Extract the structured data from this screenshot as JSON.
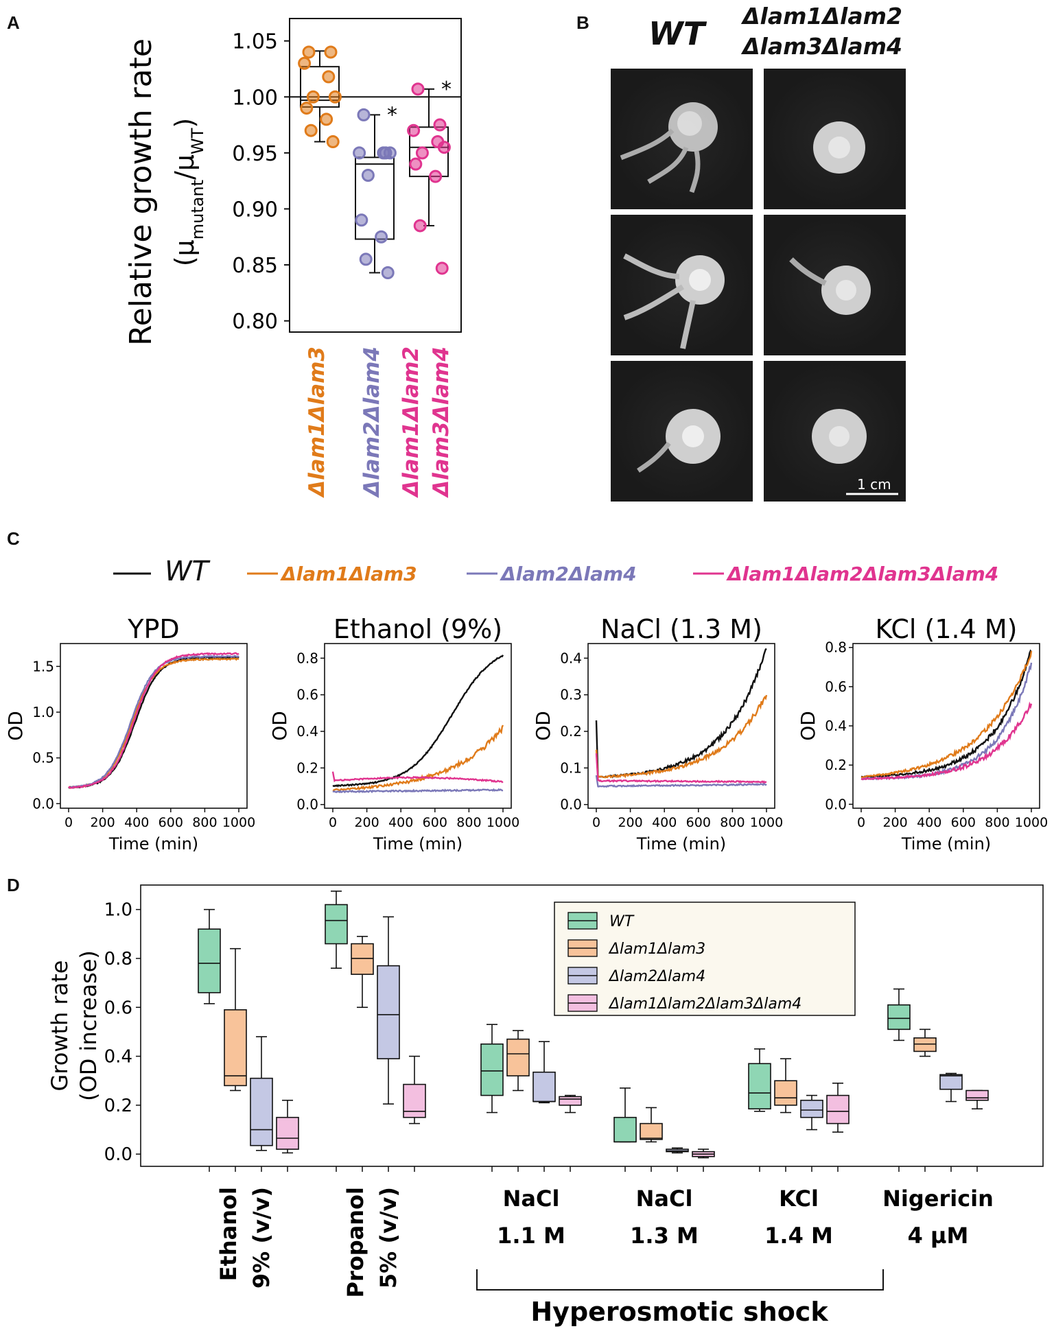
{
  "panels": {
    "a": "A",
    "b": "B",
    "c": "C",
    "d": "D"
  },
  "colors": {
    "wt": "#111111",
    "lam13": "#e07b1a",
    "lam24": "#7b78b8",
    "quad": "#e0348f",
    "box_wt": "#8fd6b4",
    "box_lam13": "#f8c39a",
    "box_lam24": "#c4c8e4",
    "box_quad": "#f3bfe0"
  },
  "panelA": {
    "ylabel_main": "Relative growth rate",
    "ylabel_paren_open": "(μ",
    "ylabel_sub1": "mutant",
    "ylabel_slash": "/μ",
    "ylabel_sub2": "WT",
    "ylabel_paren_close": ")",
    "ticks": [
      "1.05",
      "1.00",
      "0.95",
      "0.90",
      "0.85",
      "0.80"
    ],
    "tick_values": [
      1.05,
      1.0,
      0.95,
      0.9,
      0.85,
      0.8
    ],
    "ylim": [
      0.79,
      1.07
    ],
    "reference_line": 1.0,
    "star": "*",
    "groups": [
      {
        "label_line1": "Δlam1Δlam3",
        "label_line2": "",
        "color_key": "lam13",
        "box": {
          "q1": 0.991,
          "median": 0.997,
          "q3": 1.027,
          "lo": 0.96,
          "hi": 1.041
        },
        "points": [
          1.04,
          1.04,
          1.03,
          1.018,
          1.0,
          1.0,
          0.99,
          0.98,
          0.97,
          0.96
        ],
        "star": false
      },
      {
        "label_line1": "Δlam2Δlam4",
        "label_line2": "",
        "color_key": "lam24",
        "box": {
          "q1": 0.873,
          "median": 0.94,
          "q3": 0.946,
          "lo": 0.843,
          "hi": 0.984
        },
        "points": [
          0.984,
          0.95,
          0.95,
          0.95,
          0.95,
          0.93,
          0.89,
          0.875,
          0.855,
          0.843
        ],
        "star": true
      },
      {
        "label_line1": "Δlam1Δlam2",
        "label_line2": "Δlam3Δlam4",
        "color_key": "quad",
        "box": {
          "q1": 0.929,
          "median": 0.955,
          "q3": 0.973,
          "lo": 0.885,
          "hi": 1.007
        },
        "points": [
          1.007,
          0.975,
          0.97,
          0.96,
          0.955,
          0.95,
          0.94,
          0.929,
          0.885,
          0.847
        ],
        "star": true
      }
    ]
  },
  "panelB": {
    "col1": "WT",
    "col2_line1": "Δlam1Δlam2",
    "col2_line2": "Δlam3Δlam4",
    "scale_bar": "1 cm"
  },
  "panelC": {
    "legend": [
      {
        "label": "WT",
        "color_key": "wt",
        "italic_bold": false
      },
      {
        "label": "Δlam1Δlam3",
        "color_key": "lam13",
        "italic_bold": true
      },
      {
        "label": "Δlam2Δlam4",
        "color_key": "lam24",
        "italic_bold": true
      },
      {
        "label": "Δlam1Δlam2Δlam3Δlam4",
        "color_key": "quad",
        "italic_bold": true
      }
    ],
    "xlabel": "Time (min)",
    "ylabel": "OD",
    "xticks": [
      "0",
      "200",
      "400",
      "600",
      "800",
      "1000"
    ],
    "charts": [
      {
        "title": "YPD",
        "ylim": [
          -0.05,
          1.75
        ],
        "yticks": [
          0.0,
          0.5,
          1.0,
          1.5
        ],
        "ytick_labels": [
          "0.0",
          "0.5",
          "1.0",
          "1.5"
        ],
        "series": [
          {
            "key": "wt",
            "type": "logistic",
            "y0": 0.17,
            "ymax": 1.6,
            "mid": 390,
            "k": 0.0145
          },
          {
            "key": "lam13",
            "type": "logistic",
            "y0": 0.17,
            "ymax": 1.58,
            "mid": 370,
            "k": 0.0145
          },
          {
            "key": "lam24",
            "type": "logistic",
            "y0": 0.17,
            "ymax": 1.61,
            "mid": 365,
            "k": 0.0145
          },
          {
            "key": "quad",
            "type": "logistic",
            "y0": 0.17,
            "ymax": 1.64,
            "mid": 385,
            "k": 0.0145
          }
        ]
      },
      {
        "title": "Ethanol (9%)",
        "ylim": [
          -0.02,
          0.88
        ],
        "yticks": [
          0.0,
          0.2,
          0.4,
          0.6,
          0.8
        ],
        "ytick_labels": [
          "0.0",
          "0.2",
          "0.4",
          "0.6",
          "0.8"
        ],
        "series": [
          {
            "key": "wt",
            "type": "logistic",
            "y0": 0.1,
            "ymax": 0.88,
            "mid": 700,
            "k": 0.008
          },
          {
            "key": "lam13",
            "type": "exp",
            "y0": 0.08,
            "y_end": 0.42,
            "rate": 3.2
          },
          {
            "key": "lam24",
            "type": "flat",
            "start": 0.07,
            "end": 0.08
          },
          {
            "key": "quad",
            "type": "hump",
            "start": 0.13,
            "peak": 0.15,
            "end": 0.125,
            "spike": 0.18
          }
        ]
      },
      {
        "title": "NaCl (1.3 M)",
        "ylim": [
          -0.01,
          0.44
        ],
        "yticks": [
          0.0,
          0.1,
          0.2,
          0.3,
          0.4
        ],
        "ytick_labels": [
          "0.0",
          "0.1",
          "0.2",
          "0.3",
          "0.4"
        ],
        "series": [
          {
            "key": "wt",
            "type": "exp",
            "y0": 0.075,
            "y_end": 0.43,
            "rate": 4.2,
            "spike": 0.23
          },
          {
            "key": "lam13",
            "type": "exp",
            "y0": 0.075,
            "y_end": 0.3,
            "rate": 3.8,
            "spike": 0.15
          },
          {
            "key": "lam24",
            "type": "flat",
            "start": 0.05,
            "end": 0.055,
            "spike": 0.08
          },
          {
            "key": "quad",
            "type": "flat",
            "start": 0.065,
            "end": 0.062,
            "spike": 0.14
          }
        ]
      },
      {
        "title": "KCl (1.4 M)",
        "ylim": [
          -0.02,
          0.82
        ],
        "yticks": [
          0.0,
          0.2,
          0.4,
          0.6,
          0.8
        ],
        "ytick_labels": [
          "0.0",
          "0.2",
          "0.4",
          "0.6",
          "0.8"
        ],
        "series": [
          {
            "key": "wt",
            "type": "exp",
            "y0": 0.14,
            "y_end": 0.79,
            "rate": 4.6
          },
          {
            "key": "lam13",
            "type": "exp",
            "y0": 0.14,
            "y_end": 0.77,
            "rate": 3.4
          },
          {
            "key": "lam24",
            "type": "exp",
            "y0": 0.13,
            "y_end": 0.72,
            "rate": 5.2
          },
          {
            "key": "quad",
            "type": "exp",
            "y0": 0.13,
            "y_end": 0.52,
            "rate": 4.5
          }
        ]
      }
    ]
  },
  "panelD": {
    "ylabel_line1": "Growth rate",
    "ylabel_line2": "(OD increase)",
    "ylim": [
      -0.05,
      1.1
    ],
    "yticks": [
      0.0,
      0.2,
      0.4,
      0.6,
      0.8,
      1.0
    ],
    "ytick_labels": [
      "0.0",
      "0.2",
      "0.4",
      "0.6",
      "0.8",
      "1.0"
    ],
    "legend": [
      "WT",
      "Δlam1Δlam3",
      "Δlam2Δlam4",
      "Δlam1Δlam2Δlam3Δlam4"
    ],
    "conditions": [
      {
        "label1": "Ethanol",
        "label2": "9% (v/v)",
        "rotated": true,
        "boxes": [
          {
            "lo": 0.615,
            "q1": 0.66,
            "med": 0.78,
            "q3": 0.92,
            "hi": 1.0
          },
          {
            "lo": 0.26,
            "q1": 0.28,
            "med": 0.32,
            "q3": 0.59,
            "hi": 0.84
          },
          {
            "lo": 0.015,
            "q1": 0.035,
            "med": 0.1,
            "q3": 0.31,
            "hi": 0.48
          },
          {
            "lo": 0.005,
            "q1": 0.02,
            "med": 0.065,
            "q3": 0.15,
            "hi": 0.22
          }
        ]
      },
      {
        "label1": "Propanol",
        "label2": "5% (v/v)",
        "rotated": true,
        "boxes": [
          {
            "lo": 0.76,
            "q1": 0.86,
            "med": 0.955,
            "q3": 1.02,
            "hi": 1.075
          },
          {
            "lo": 0.6,
            "q1": 0.735,
            "med": 0.8,
            "q3": 0.86,
            "hi": 0.89
          },
          {
            "lo": 0.205,
            "q1": 0.39,
            "med": 0.57,
            "q3": 0.77,
            "hi": 0.97
          },
          {
            "lo": 0.125,
            "q1": 0.15,
            "med": 0.175,
            "q3": 0.285,
            "hi": 0.4
          }
        ]
      },
      {
        "label1": "NaCl",
        "label2": "1.1 M",
        "rotated": false,
        "boxes": [
          {
            "lo": 0.17,
            "q1": 0.24,
            "med": 0.34,
            "q3": 0.45,
            "hi": 0.53
          },
          {
            "lo": 0.26,
            "q1": 0.32,
            "med": 0.41,
            "q3": 0.47,
            "hi": 0.505
          },
          {
            "lo": 0.21,
            "q1": 0.215,
            "med": 0.215,
            "q3": 0.335,
            "hi": 0.46
          },
          {
            "lo": 0.17,
            "q1": 0.2,
            "med": 0.225,
            "q3": 0.235,
            "hi": 0.24
          }
        ]
      },
      {
        "label1": "NaCl",
        "label2": "1.3 M",
        "rotated": false,
        "boxes": [
          {
            "lo": 0.05,
            "q1": 0.05,
            "med": 0.05,
            "q3": 0.15,
            "hi": 0.27
          },
          {
            "lo": 0.05,
            "q1": 0.06,
            "med": 0.065,
            "q3": 0.125,
            "hi": 0.19
          },
          {
            "lo": 0.005,
            "q1": 0.01,
            "med": 0.013,
            "q3": 0.02,
            "hi": 0.025
          },
          {
            "lo": -0.015,
            "q1": -0.01,
            "med": 0.0,
            "q3": 0.01,
            "hi": 0.02
          }
        ]
      },
      {
        "label1": "KCl",
        "label2": "1.4 M",
        "rotated": false,
        "boxes": [
          {
            "lo": 0.175,
            "q1": 0.185,
            "med": 0.25,
            "q3": 0.37,
            "hi": 0.43
          },
          {
            "lo": 0.17,
            "q1": 0.2,
            "med": 0.23,
            "q3": 0.3,
            "hi": 0.39
          },
          {
            "lo": 0.1,
            "q1": 0.15,
            "med": 0.18,
            "q3": 0.22,
            "hi": 0.24
          },
          {
            "lo": 0.09,
            "q1": 0.125,
            "med": 0.175,
            "q3": 0.24,
            "hi": 0.29
          }
        ]
      },
      {
        "label1": "Nigericin",
        "label2": "4 µM",
        "rotated": false,
        "boxes": [
          {
            "lo": 0.465,
            "q1": 0.51,
            "med": 0.555,
            "q3": 0.61,
            "hi": 0.675
          },
          {
            "lo": 0.4,
            "q1": 0.42,
            "med": 0.45,
            "q3": 0.475,
            "hi": 0.51
          },
          {
            "lo": 0.215,
            "q1": 0.265,
            "med": 0.32,
            "q3": 0.325,
            "hi": 0.33
          },
          {
            "lo": 0.185,
            "q1": 0.22,
            "med": 0.23,
            "q3": 0.26,
            "hi": 0.26
          }
        ]
      }
    ],
    "bracket_label": "Hyperosmotic shock"
  }
}
